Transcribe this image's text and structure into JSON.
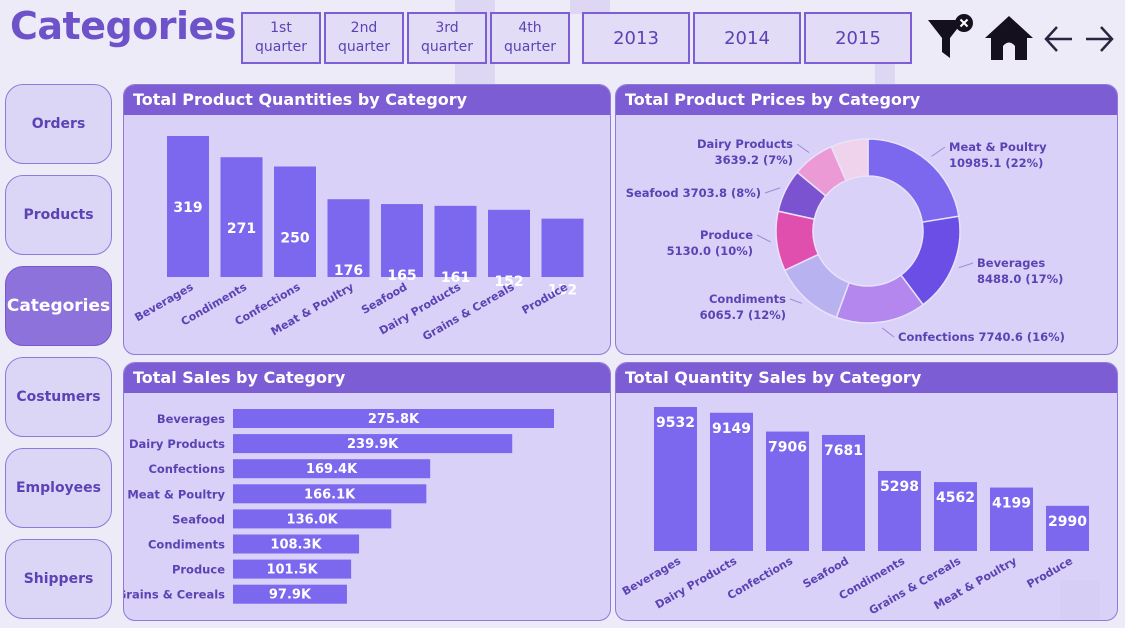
{
  "header": {
    "title": "Categories"
  },
  "quarters": [
    {
      "line1": "1st",
      "line2": "quarter"
    },
    {
      "line1": "2nd",
      "line2": "quarter"
    },
    {
      "line1": "3rd",
      "line2": "quarter"
    },
    {
      "line1": "4th",
      "line2": "quarter"
    }
  ],
  "years": [
    "2013",
    "2014",
    "2015"
  ],
  "nav": [
    "Orders",
    "Products",
    "Categories",
    "Costumers",
    "Employees",
    "Shippers"
  ],
  "active_nav": "Categories",
  "colors": {
    "bar": "#7b68ee",
    "header": "#7c5dd3",
    "text": "#5b43b5"
  },
  "chart_data": [
    {
      "id": "quantities",
      "type": "bar",
      "title": "Total Product Quantities by Category",
      "categories": [
        "Beverages",
        "Condiments",
        "Confections",
        "Meat & Poultry",
        "Seafood",
        "Dairy Products",
        "Grains & Cereals",
        "Produce"
      ],
      "values": [
        319,
        271,
        250,
        176,
        165,
        161,
        152,
        132
      ],
      "labels": [
        "319",
        "271",
        "250",
        "176",
        "165",
        "161",
        "152",
        "132"
      ],
      "ylim": [
        0,
        319
      ]
    },
    {
      "id": "prices",
      "type": "pie",
      "title": "Total Product Prices by Category",
      "slices": [
        {
          "name": "Meat & Poultry",
          "value": 10985.1,
          "pct": 22,
          "color": "#7b68ee",
          "label": [
            "Meat & Poultry",
            "10985.1 (22%)"
          ]
        },
        {
          "name": "Beverages",
          "value": 8488.0,
          "pct": 17,
          "color": "#6a4ee6",
          "label": [
            "Beverages",
            "8488.0 (17%)"
          ]
        },
        {
          "name": "Confections",
          "value": 7740.6,
          "pct": 16,
          "color": "#b487ef",
          "label": [
            "Confections 7740.6 (16%)"
          ]
        },
        {
          "name": "Condiments",
          "value": 6065.7,
          "pct": 12,
          "color": "#b9b2f0",
          "label": [
            "Condiments",
            "6065.7 (12%)"
          ]
        },
        {
          "name": "Produce",
          "value": 5130.0,
          "pct": 10,
          "color": "#e04fae",
          "label": [
            "Produce",
            "5130.0 (10%)"
          ]
        },
        {
          "name": "Seafood",
          "value": 3703.8,
          "pct": 8,
          "color": "#7b52cf",
          "label": [
            "Seafood 3703.8 (8%)"
          ]
        },
        {
          "name": "Dairy Products",
          "value": 3639.2,
          "pct": 7,
          "color": "#ec9ad6",
          "label": [
            "Dairy Products",
            "3639.2 (7%)"
          ]
        },
        {
          "name": "Grains & Cereals",
          "value": 3200.0,
          "pct": 7,
          "color": "#efd2ec",
          "label": []
        }
      ]
    },
    {
      "id": "sales",
      "type": "bar",
      "orientation": "horizontal",
      "title": "Total Sales by Category",
      "categories": [
        "Beverages",
        "Dairy Products",
        "Confections",
        "Meat & Poultry",
        "Seafood",
        "Condiments",
        "Produce",
        "Grains & Cereals"
      ],
      "values": [
        275.8,
        239.9,
        169.4,
        166.1,
        136.0,
        108.3,
        101.5,
        97.9
      ],
      "labels": [
        "275.8K",
        "239.9K",
        "169.4K",
        "166.1K",
        "136.0K",
        "108.3K",
        "101.5K",
        "97.9K"
      ],
      "xlim": [
        0,
        275.8
      ]
    },
    {
      "id": "qty_sales",
      "type": "bar",
      "title": "Total Quantity Sales by Category",
      "categories": [
        "Beverages",
        "Dairy Products",
        "Confections",
        "Seafood",
        "Condiments",
        "Grains & Cereals",
        "Meat & Poultry",
        "Produce"
      ],
      "values": [
        9532,
        9149,
        7906,
        7681,
        5298,
        4562,
        4199,
        2990
      ],
      "labels": [
        "9532",
        "9149",
        "7906",
        "7681",
        "5298",
        "4562",
        "4199",
        "2990"
      ],
      "ylim": [
        0,
        9532
      ]
    }
  ]
}
